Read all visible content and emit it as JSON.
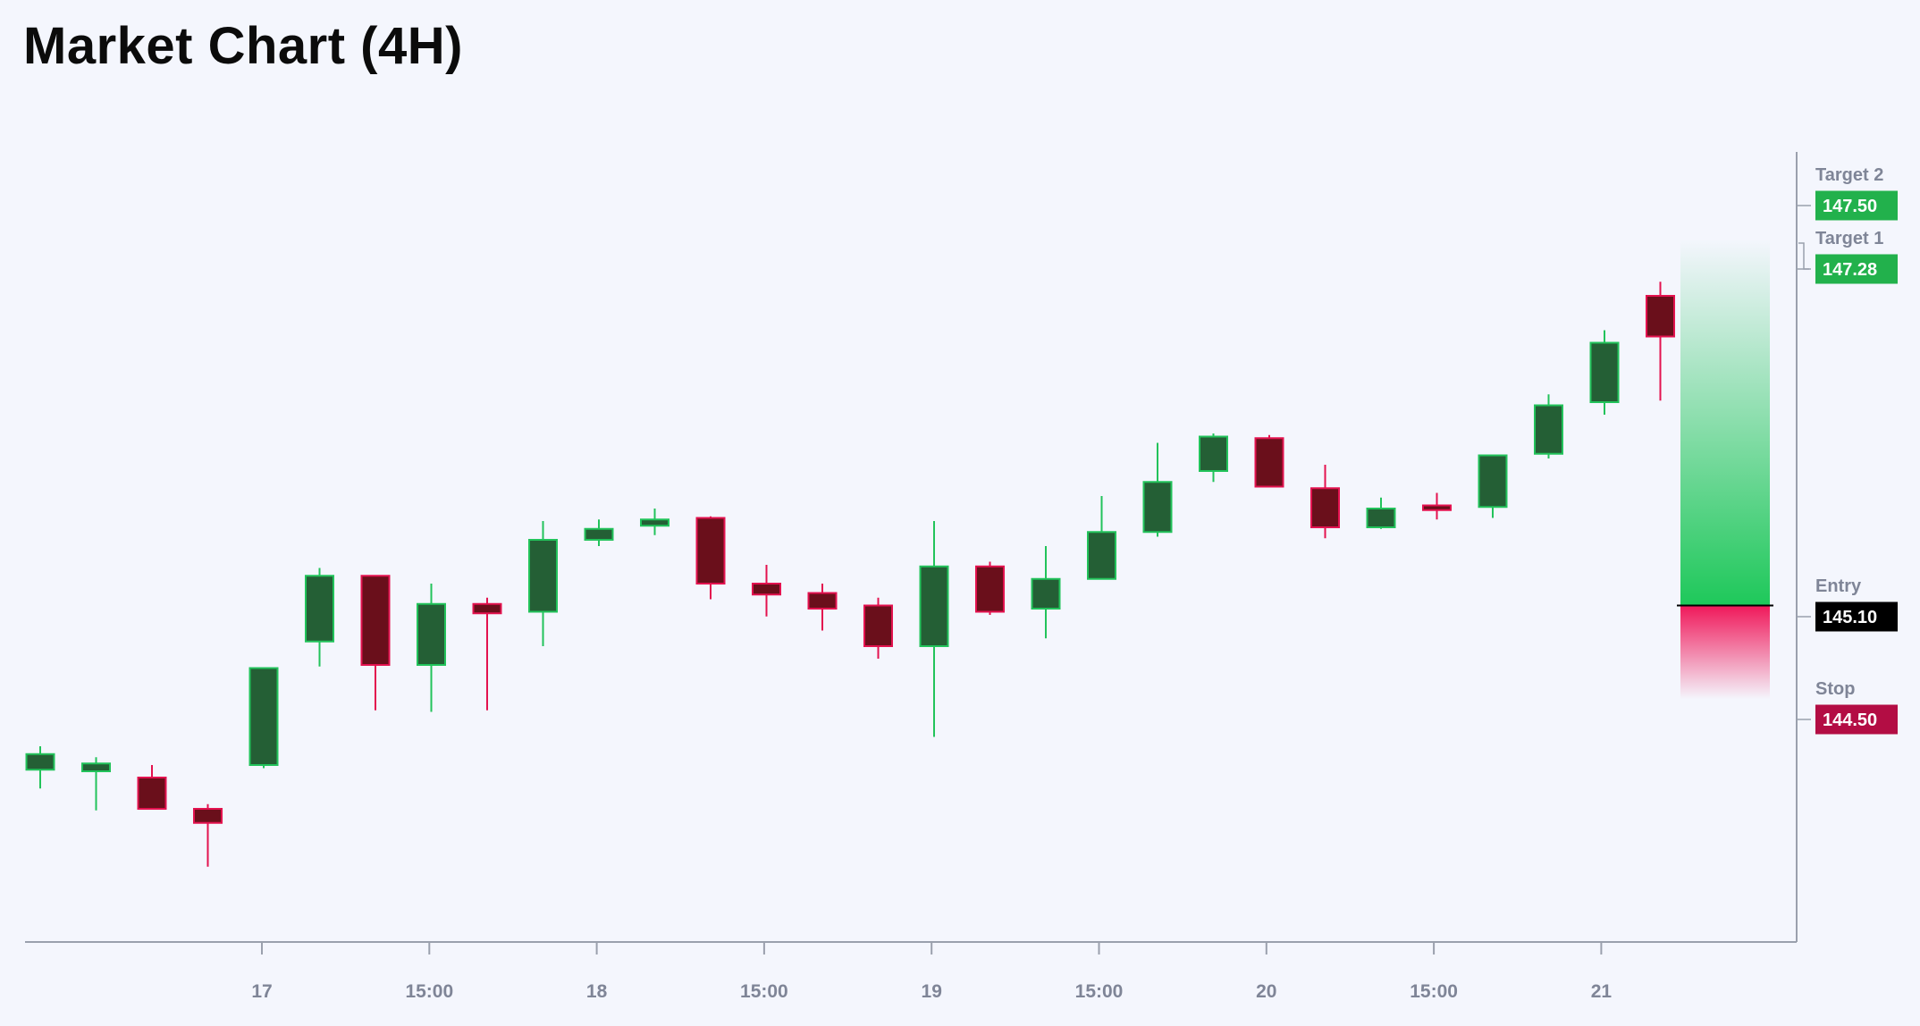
{
  "title": "Market Chart (4H)",
  "colors": {
    "background": "#f4f6fd",
    "up_fill": "#245f35",
    "up_stroke": "#22c35b",
    "down_fill": "#6a0f1b",
    "down_stroke": "#e3124f",
    "target": "#22b14c",
    "stop": "#b30d44",
    "entry": "#000000",
    "axis": "#9aa0ad",
    "axis_text": "#7f8597"
  },
  "chart_data": {
    "type": "candlestick",
    "timeframe": "4H",
    "ylim": [
      143.2,
      148.0
    ],
    "x_tick_labels": [
      "17",
      "15:00",
      "18",
      "15:00",
      "19",
      "15:00",
      "20",
      "15:00",
      "21"
    ],
    "candles": [
      {
        "o": 144.05,
        "h": 144.2,
        "l": 143.93,
        "c": 144.15
      },
      {
        "o": 144.04,
        "h": 144.13,
        "l": 143.79,
        "c": 144.09
      },
      {
        "o": 144.0,
        "h": 144.08,
        "l": 143.8,
        "c": 143.8
      },
      {
        "o": 143.8,
        "h": 143.83,
        "l": 143.43,
        "c": 143.71
      },
      {
        "o": 144.08,
        "h": 144.7,
        "l": 144.06,
        "c": 144.7
      },
      {
        "o": 144.87,
        "h": 145.34,
        "l": 144.71,
        "c": 145.29
      },
      {
        "o": 145.29,
        "h": 145.29,
        "l": 144.43,
        "c": 144.72
      },
      {
        "o": 144.72,
        "h": 145.24,
        "l": 144.42,
        "c": 145.11
      },
      {
        "o": 145.11,
        "h": 145.15,
        "l": 144.43,
        "c": 145.05
      },
      {
        "o": 145.06,
        "h": 145.64,
        "l": 144.84,
        "c": 145.52
      },
      {
        "o": 145.52,
        "h": 145.65,
        "l": 145.48,
        "c": 145.59
      },
      {
        "o": 145.61,
        "h": 145.72,
        "l": 145.55,
        "c": 145.65
      },
      {
        "o": 145.66,
        "h": 145.67,
        "l": 145.14,
        "c": 145.24
      },
      {
        "o": 145.24,
        "h": 145.36,
        "l": 145.03,
        "c": 145.17
      },
      {
        "o": 145.18,
        "h": 145.24,
        "l": 144.94,
        "c": 145.08
      },
      {
        "o": 145.1,
        "h": 145.15,
        "l": 144.76,
        "c": 144.84
      },
      {
        "o": 144.84,
        "h": 145.64,
        "l": 144.26,
        "c": 145.35
      },
      {
        "o": 145.35,
        "h": 145.38,
        "l": 145.04,
        "c": 145.06
      },
      {
        "o": 145.08,
        "h": 145.48,
        "l": 144.89,
        "c": 145.27
      },
      {
        "o": 145.27,
        "h": 145.8,
        "l": 145.27,
        "c": 145.57
      },
      {
        "o": 145.57,
        "h": 146.14,
        "l": 145.54,
        "c": 145.89
      },
      {
        "o": 145.96,
        "h": 146.2,
        "l": 145.89,
        "c": 146.18
      },
      {
        "o": 146.17,
        "h": 146.19,
        "l": 145.9,
        "c": 145.86
      },
      {
        "o": 145.85,
        "h": 146.0,
        "l": 145.53,
        "c": 145.6
      },
      {
        "o": 145.6,
        "h": 145.79,
        "l": 145.59,
        "c": 145.72
      },
      {
        "o": 145.74,
        "h": 145.82,
        "l": 145.65,
        "c": 145.71
      },
      {
        "o": 145.73,
        "h": 146.06,
        "l": 145.66,
        "c": 146.06
      },
      {
        "o": 146.07,
        "h": 146.45,
        "l": 146.04,
        "c": 146.38
      },
      {
        "o": 146.4,
        "h": 146.86,
        "l": 146.32,
        "c": 146.78
      },
      {
        "o": 147.08,
        "h": 147.17,
        "l": 146.41,
        "c": 146.82
      }
    ],
    "levels": [
      {
        "name": "Target 2",
        "price": "147.50",
        "value": 147.5,
        "kind": "target"
      },
      {
        "name": "Target 1",
        "price": "147.28",
        "value": 147.28,
        "kind": "target"
      },
      {
        "name": "Entry",
        "price": "145.10",
        "value": 145.1,
        "kind": "entry"
      },
      {
        "name": "Stop",
        "price": "144.50",
        "value": 144.5,
        "kind": "stop"
      }
    ],
    "position_box": {
      "entry": 145.1,
      "target": 147.5,
      "stop": 144.5
    }
  }
}
